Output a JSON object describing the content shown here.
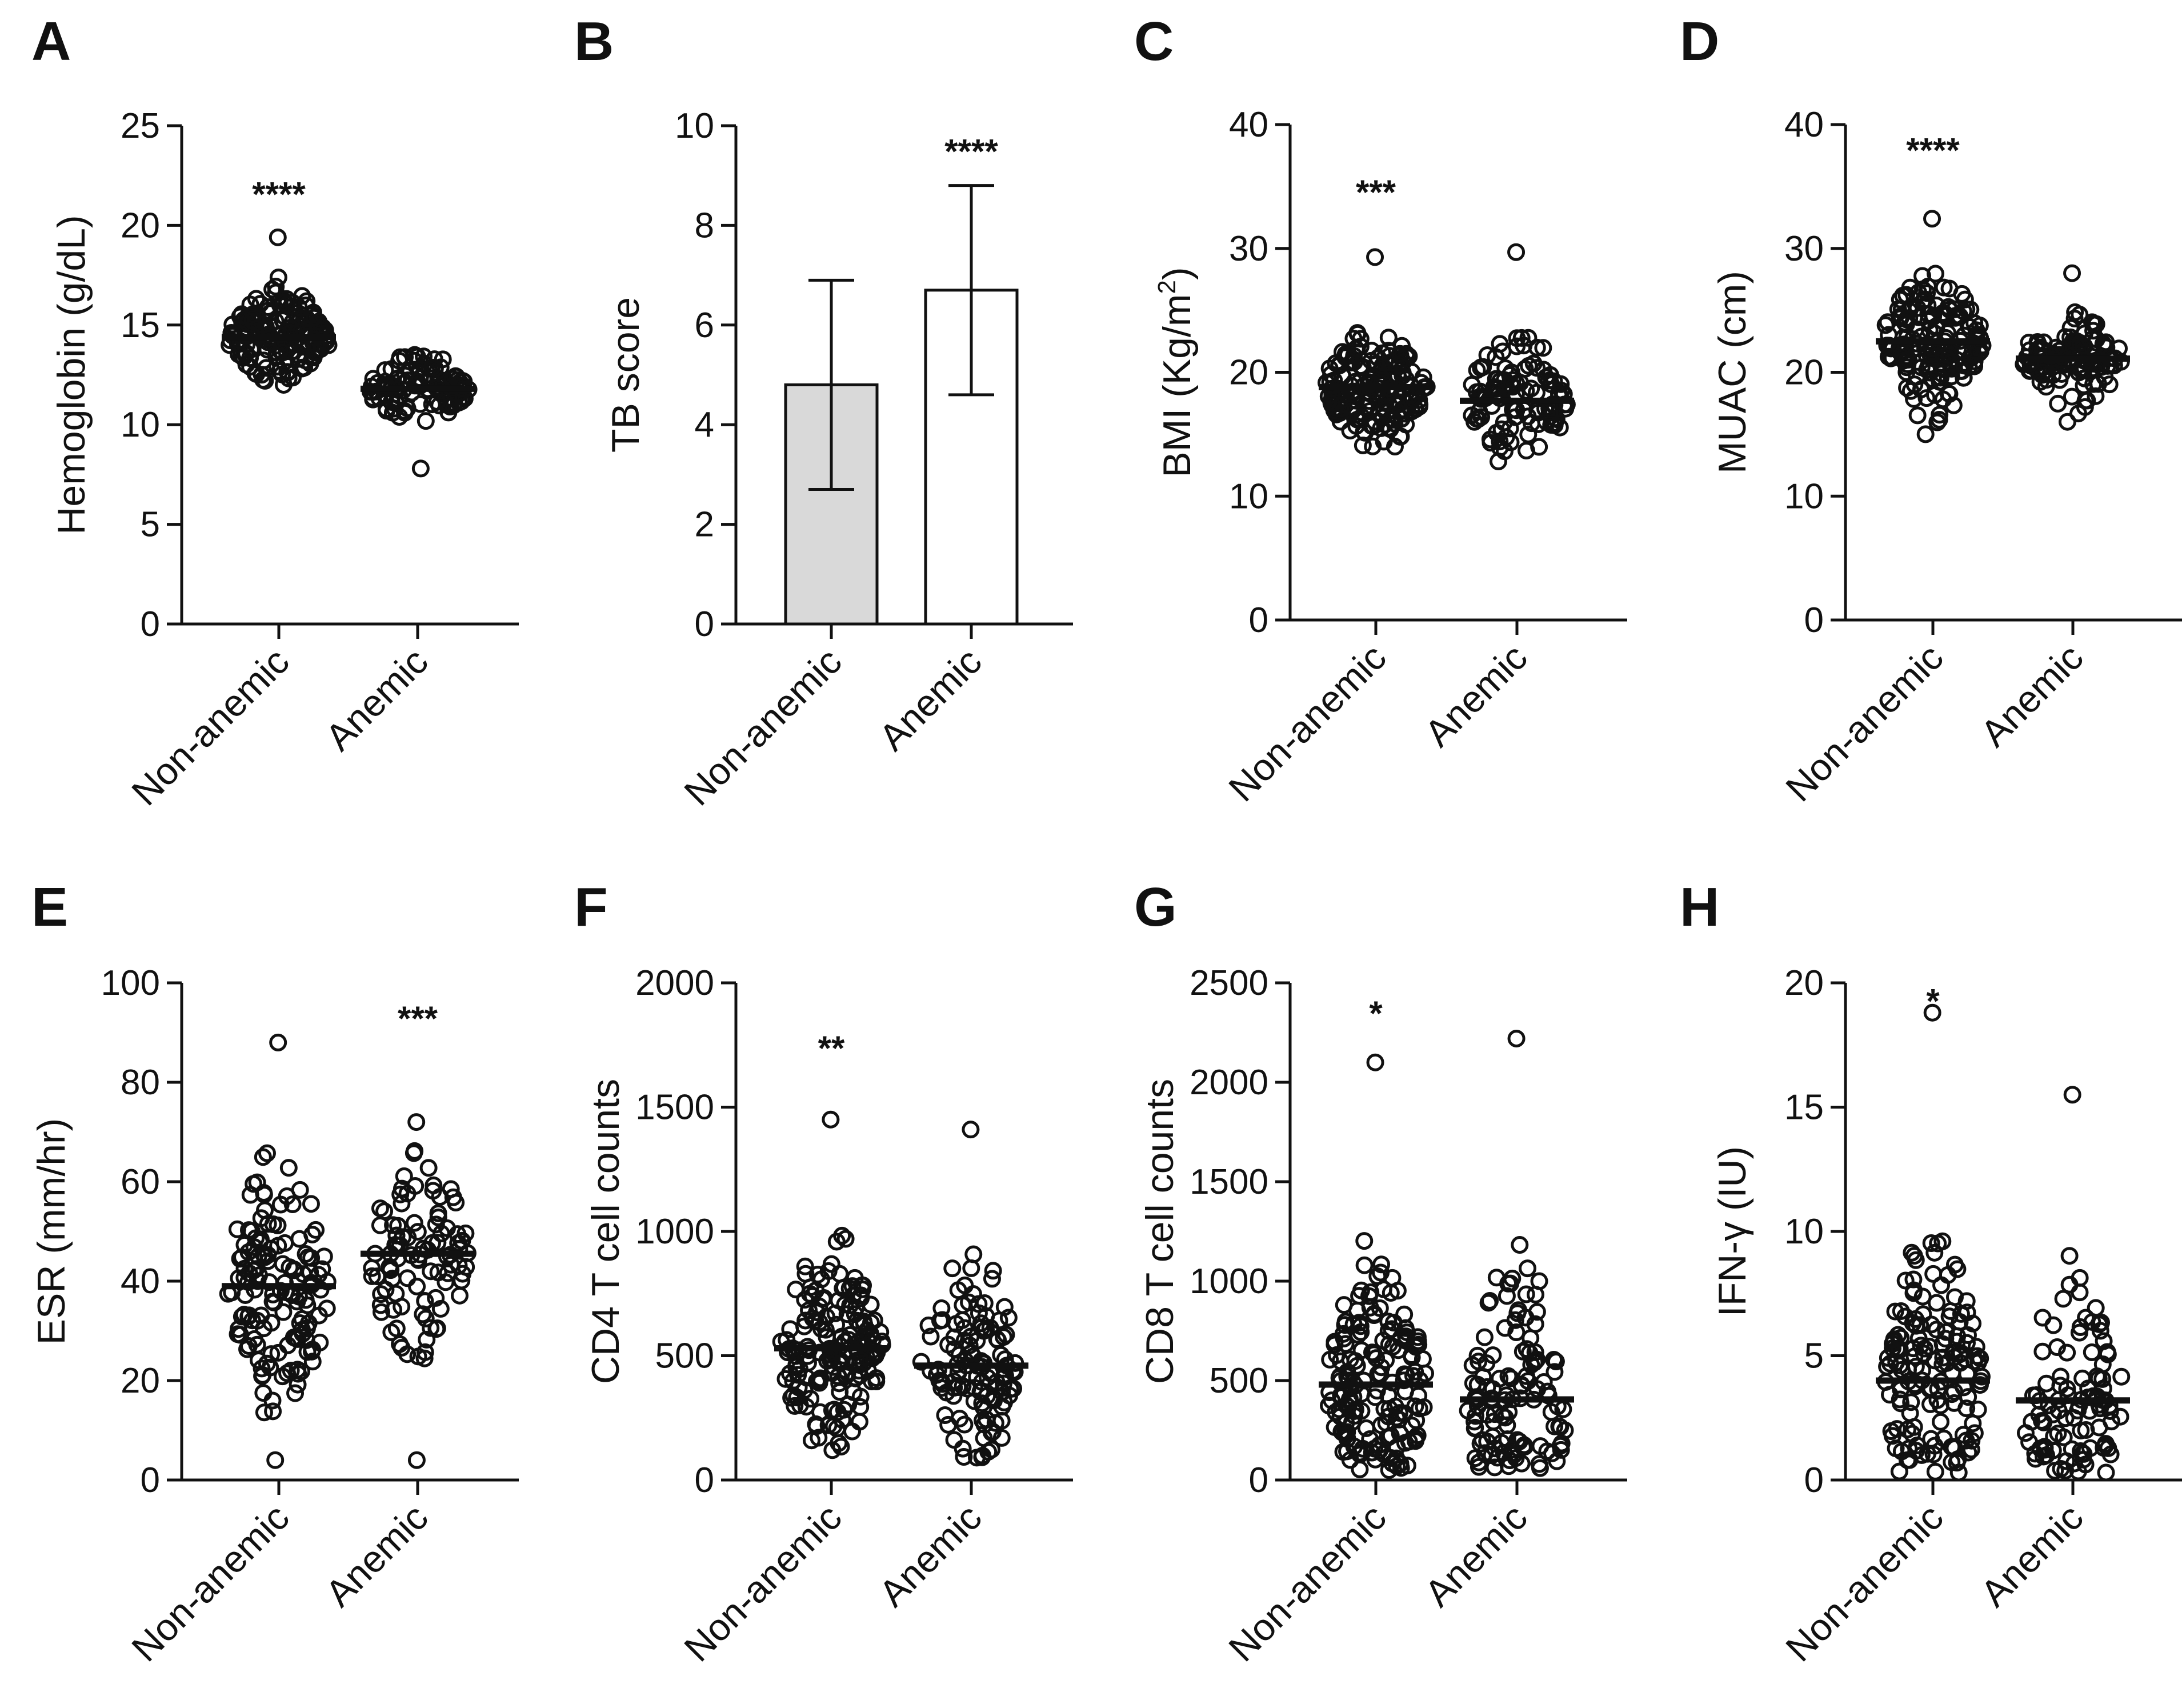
{
  "figure_title": "",
  "chart_data": [
    {
      "panel": "A",
      "type": "scatter",
      "ylabel": "Hemoglobin (g/dL)",
      "ylim": [
        0,
        25
      ],
      "yticks": [
        0,
        5,
        10,
        15,
        20,
        25
      ],
      "ytick_labels": [
        "0",
        "5",
        "10",
        "15",
        "20",
        "25"
      ],
      "categories": [
        "Non-anemic",
        "Anemic"
      ],
      "series": [
        {
          "name": "Non-anemic",
          "center": 14.4,
          "range": [
            12.0,
            19.4
          ],
          "n": 170
        },
        {
          "name": "Anemic",
          "center": 11.8,
          "range": [
            7.8,
            13.5
          ],
          "n": 110
        }
      ],
      "annotations": [
        {
          "text": "****",
          "category": "Non-anemic",
          "y": 21.6
        }
      ]
    },
    {
      "panel": "B",
      "type": "bar",
      "ylabel": "TB score",
      "ylim": [
        0,
        10
      ],
      "yticks": [
        0,
        2,
        4,
        6,
        8,
        10
      ],
      "ytick_labels": [
        "0",
        "2",
        "4",
        "6",
        "8",
        "10"
      ],
      "categories": [
        "Non-anemic",
        "Anemic"
      ],
      "values": [
        4.8,
        6.7
      ],
      "error": [
        [
          2.7,
          6.9
        ],
        [
          4.6,
          8.8
        ]
      ],
      "fills": [
        "#d9d9d9",
        "#ffffff"
      ],
      "annotations": [
        {
          "text": "****",
          "category": "Anemic",
          "y": 9.5
        }
      ]
    },
    {
      "panel": "C",
      "type": "scatter",
      "ylabel": "BMI (Kg/m",
      "ylabel_sup": "2",
      "ylabel_close": ")",
      "ylim": [
        0,
        40
      ],
      "yticks": [
        0,
        10,
        20,
        30,
        40
      ],
      "ytick_labels": [
        "0",
        "10",
        "20",
        "30",
        "40"
      ],
      "categories": [
        "Non-anemic",
        "Anemic"
      ],
      "series": [
        {
          "name": "Non-anemic",
          "center": 18.8,
          "range": [
            14.0,
            29.3
          ],
          "n": 170
        },
        {
          "name": "Anemic",
          "center": 17.7,
          "range": [
            12.8,
            29.7
          ],
          "n": 110
        }
      ],
      "annotations": [
        {
          "text": "***",
          "category": "Non-anemic",
          "y": 34.6
        }
      ]
    },
    {
      "panel": "D",
      "type": "scatter",
      "ylabel": "MUAC (cm)",
      "ylim": [
        0,
        40
      ],
      "yticks": [
        0,
        10,
        20,
        30,
        40
      ],
      "ytick_labels": [
        "0",
        "10",
        "20",
        "30",
        "40"
      ],
      "categories": [
        "Non-anemic",
        "Anemic"
      ],
      "series": [
        {
          "name": "Non-anemic",
          "center": 22.5,
          "range": [
            15.0,
            32.4
          ],
          "n": 170
        },
        {
          "name": "Anemic",
          "center": 21.1,
          "range": [
            16.0,
            28.0
          ],
          "n": 110
        }
      ],
      "annotations": [
        {
          "text": "****",
          "category": "Non-anemic",
          "y": 38.0
        }
      ]
    },
    {
      "panel": "E",
      "type": "scatter",
      "ylabel": "ESR (mm/hr)",
      "ylim": [
        0,
        100
      ],
      "yticks": [
        0,
        20,
        40,
        60,
        80,
        100
      ],
      "ytick_labels": [
        "0",
        "20",
        "40",
        "60",
        "80",
        "100"
      ],
      "categories": [
        "Non-anemic",
        "Anemic"
      ],
      "series": [
        {
          "name": "Non-anemic",
          "center": 39.0,
          "range": [
            4.0,
            88.0
          ],
          "n": 140
        },
        {
          "name": "Anemic",
          "center": 45.5,
          "range": [
            4.0,
            72.0
          ],
          "n": 100
        }
      ],
      "annotations": [
        {
          "text": "***",
          "category": "Anemic",
          "y": 93.0
        }
      ]
    },
    {
      "panel": "F",
      "type": "scatter",
      "ylabel": "CD4 T cell counts",
      "ylim": [
        0,
        2000
      ],
      "yticks": [
        0,
        500,
        1000,
        1500,
        2000
      ],
      "ytick_labels": [
        "0",
        "500",
        "1000",
        "1500",
        "2000"
      ],
      "categories": [
        "Non-anemic",
        "Anemic"
      ],
      "series": [
        {
          "name": "Non-anemic",
          "center": 530,
          "range": [
            120,
            1450
          ],
          "n": 170
        },
        {
          "name": "Anemic",
          "center": 460,
          "range": [
            90,
            1410
          ],
          "n": 120
        }
      ],
      "annotations": [
        {
          "text": "**",
          "category": "Non-anemic",
          "y": 1740
        }
      ]
    },
    {
      "panel": "G",
      "type": "scatter",
      "ylabel": "CD8 T cell counts",
      "ylim": [
        0,
        2500
      ],
      "yticks": [
        0,
        500,
        1000,
        1500,
        2000,
        2500
      ],
      "ytick_labels": [
        "0",
        "500",
        "1000",
        "1500",
        "2000",
        "2500"
      ],
      "categories": [
        "Non-anemic",
        "Anemic"
      ],
      "series": [
        {
          "name": "Non-anemic",
          "center": 480,
          "range": [
            50,
            2100
          ],
          "n": 170
        },
        {
          "name": "Anemic",
          "center": 405,
          "range": [
            60,
            2220
          ],
          "n": 120
        }
      ],
      "annotations": [
        {
          "text": "*",
          "category": "Non-anemic",
          "y": 2350
        }
      ]
    },
    {
      "panel": "H",
      "type": "scatter",
      "ylabel": "IFN-γ (IU)",
      "ylim": [
        0,
        20
      ],
      "yticks": [
        0,
        5,
        10,
        15,
        20
      ],
      "ytick_labels": [
        "0",
        "5",
        "10",
        "15",
        "20"
      ],
      "categories": [
        "Non-anemic",
        "Anemic"
      ],
      "series": [
        {
          "name": "Non-anemic",
          "center": 4.0,
          "range": [
            0.3,
            18.8
          ],
          "n": 150
        },
        {
          "name": "Anemic",
          "center": 3.2,
          "range": [
            0.3,
            15.5
          ],
          "n": 100
        }
      ],
      "annotations": [
        {
          "text": "*",
          "category": "Non-anemic",
          "y": 19.3
        }
      ]
    }
  ]
}
